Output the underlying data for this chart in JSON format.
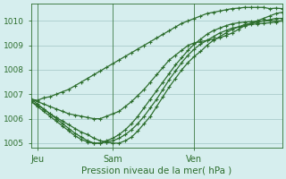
{
  "title": "",
  "xlabel": "Pression niveau de la mer( hPa )",
  "ylabel": "",
  "bg_color": "#d6eeee",
  "grid_color": "#aacccc",
  "line_color": "#2d6e2d",
  "ylim": [
    1004.8,
    1010.7
  ],
  "xlim": [
    0,
    40
  ],
  "yticks": [
    1005,
    1006,
    1007,
    1008,
    1009,
    1010
  ],
  "day_labels": [
    "Jeu",
    "Sam",
    "Ven"
  ],
  "day_positions": [
    1,
    13,
    26
  ],
  "lines": [
    [
      1006.8,
      1006.75,
      1006.85,
      1006.9,
      1007.0,
      1007.1,
      1007.2,
      1007.35,
      1007.5,
      1007.65,
      1007.8,
      1007.95,
      1008.1,
      1008.25,
      1008.4,
      1008.55,
      1008.7,
      1008.85,
      1009.0,
      1009.15,
      1009.3,
      1009.45,
      1009.6,
      1009.75,
      1009.9,
      1010.0,
      1010.1,
      1010.2,
      1010.3,
      1010.35,
      1010.4,
      1010.45,
      1010.5,
      1010.52,
      1010.55,
      1010.55,
      1010.55,
      1010.55,
      1010.5,
      1010.52,
      1010.5
    ],
    [
      1006.8,
      1006.7,
      1006.6,
      1006.5,
      1006.4,
      1006.3,
      1006.2,
      1006.15,
      1006.1,
      1006.05,
      1006.0,
      1006.0,
      1006.1,
      1006.2,
      1006.3,
      1006.5,
      1006.7,
      1006.95,
      1007.2,
      1007.5,
      1007.8,
      1008.1,
      1008.4,
      1008.6,
      1008.8,
      1009.0,
      1009.1,
      1009.15,
      1009.2,
      1009.25,
      1009.3,
      1009.4,
      1009.5,
      1009.65,
      1009.8,
      1009.9,
      1010.0,
      1010.1,
      1010.2,
      1010.3,
      1010.35
    ],
    [
      1006.8,
      1006.6,
      1006.4,
      1006.2,
      1006.05,
      1005.9,
      1005.75,
      1005.6,
      1005.45,
      1005.35,
      1005.2,
      1005.1,
      1005.05,
      1005.0,
      1005.0,
      1005.1,
      1005.25,
      1005.5,
      1005.8,
      1006.1,
      1006.5,
      1006.9,
      1007.3,
      1007.65,
      1008.0,
      1008.3,
      1008.55,
      1008.75,
      1009.0,
      1009.2,
      1009.35,
      1009.5,
      1009.65,
      1009.75,
      1009.85,
      1009.9,
      1009.95,
      1010.0,
      1010.05,
      1010.1,
      1010.1
    ],
    [
      1006.7,
      1006.55,
      1006.4,
      1006.2,
      1006.0,
      1005.8,
      1005.6,
      1005.4,
      1005.25,
      1005.1,
      1005.0,
      1005.0,
      1005.05,
      1005.1,
      1005.2,
      1005.35,
      1005.55,
      1005.8,
      1006.1,
      1006.45,
      1006.8,
      1007.2,
      1007.6,
      1007.95,
      1008.3,
      1008.6,
      1008.85,
      1009.05,
      1009.2,
      1009.35,
      1009.5,
      1009.6,
      1009.7,
      1009.75,
      1009.8,
      1009.85,
      1009.88,
      1009.9,
      1009.92,
      1009.95,
      1010.0
    ],
    [
      1006.7,
      1006.5,
      1006.3,
      1006.1,
      1005.9,
      1005.7,
      1005.5,
      1005.3,
      1005.15,
      1005.05,
      1005.0,
      1005.0,
      1005.1,
      1005.2,
      1005.35,
      1005.55,
      1005.8,
      1006.1,
      1006.45,
      1006.8,
      1007.15,
      1007.5,
      1007.85,
      1008.2,
      1008.5,
      1008.8,
      1009.05,
      1009.25,
      1009.45,
      1009.6,
      1009.7,
      1009.8,
      1009.88,
      1009.92,
      1009.95,
      1009.97,
      1009.98,
      1010.0,
      1010.0,
      1010.0,
      1010.0
    ]
  ]
}
